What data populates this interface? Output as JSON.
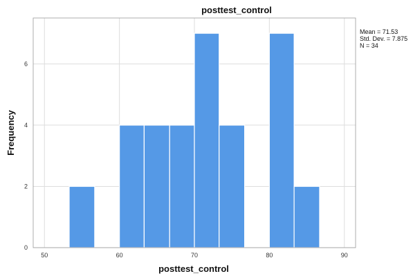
{
  "chart_data": {
    "type": "bar",
    "title": "posttest_control",
    "xlabel": "posttest_control",
    "ylabel": "Frequency",
    "xlim": [
      48.5,
      91.5
    ],
    "ylim": [
      0,
      7.5
    ],
    "xticks": [
      "50",
      "60",
      "70",
      "80",
      "90"
    ],
    "yticks": [
      "0",
      "2",
      "4",
      "6"
    ],
    "grid": true,
    "bins": [
      {
        "start": 53.3,
        "end": 56.7,
        "value": 2
      },
      {
        "start": 60.0,
        "end": 63.3,
        "value": 4
      },
      {
        "start": 63.3,
        "end": 66.7,
        "value": 4
      },
      {
        "start": 66.7,
        "end": 70.0,
        "value": 4
      },
      {
        "start": 70.0,
        "end": 73.3,
        "value": 7
      },
      {
        "start": 73.3,
        "end": 76.7,
        "value": 4
      },
      {
        "start": 80.0,
        "end": 83.3,
        "value": 7
      },
      {
        "start": 83.3,
        "end": 86.7,
        "value": 2
      }
    ],
    "stats": [
      "Mean = 71.53",
      "Std. Dev. = 7.875",
      "N = 34"
    ],
    "bar_color": "#5599e6"
  }
}
